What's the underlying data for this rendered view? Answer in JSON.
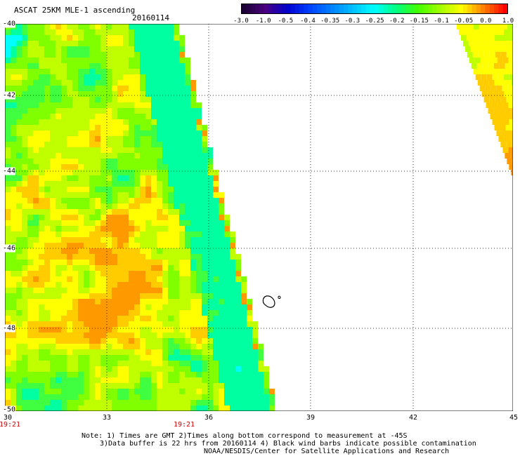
{
  "header": {
    "title": "ASCAT 25KM MLE-1 ascending",
    "date": "20160114"
  },
  "colorbar": {
    "labels": [
      "-3.0",
      "-1.0",
      "-0.5",
      "-0.4",
      "-0.35",
      "-0.3",
      "-0.25",
      "-0.2",
      "-0.15",
      "-0.1",
      "-0.05",
      "0.0",
      "1.0"
    ],
    "colors": [
      "#1a0033",
      "#4b0082",
      "#0000cd",
      "#0040ff",
      "#0080ff",
      "#00c0ff",
      "#00ffff",
      "#00ff80",
      "#40ff00",
      "#a0ff00",
      "#ffff00",
      "#ff8000",
      "#ff0000"
    ]
  },
  "axes": {
    "lat_labels": [
      "-40",
      "-42",
      "-44",
      "-46",
      "-48",
      "-50"
    ],
    "lon_labels": [
      "30",
      "33",
      "36",
      "39",
      "42",
      "45"
    ],
    "lat_range": [
      -50,
      -40
    ],
    "lon_range": [
      30,
      45
    ],
    "grid": "dotted"
  },
  "times": [
    "19:21",
    "19:21"
  ],
  "notes": {
    "line1": "Note: 1) Times are GMT 2)Times along bottom correspond to measurement at -45S",
    "line2": "3)Data buffer is 22 hrs from 20160114 4) Black wind barbs indicate possible contamination",
    "line3": "NOAA/NESDIS/Center for Satellite Applications and Research"
  }
}
